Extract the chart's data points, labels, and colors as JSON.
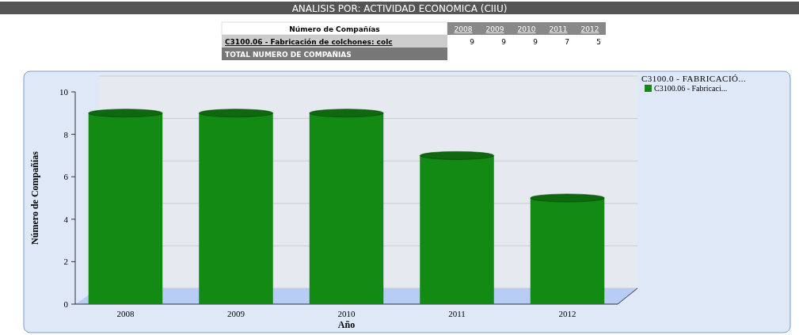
{
  "chart_data": {
    "type": "bar",
    "title": "ANALISIS POR: ACTIVIDAD ECONOMICA (CIIU)",
    "xlabel": "Año",
    "ylabel": "Número de Compañías",
    "legend_title": "C3100.0 - FABRICACIÓ...",
    "categories": [
      "2008",
      "2009",
      "2010",
      "2011",
      "2012"
    ],
    "series": [
      {
        "name": "C3100.06 - Fabricaci...",
        "color": "#138a13",
        "values": [
          9,
          9,
          9,
          7,
          5
        ]
      }
    ],
    "ylim": [
      0,
      10
    ],
    "yticks": [
      0,
      2,
      4,
      6,
      8,
      10
    ],
    "grid": "y",
    "legend": "top right",
    "annotations": [
      "Número de Compañías",
      "C3100.06 - Fabricación de colchones: colc",
      "TOTAL NUMERO DE COMPAÑIAS",
      "9",
      "9",
      "9",
      "7",
      "5"
    ]
  }
}
